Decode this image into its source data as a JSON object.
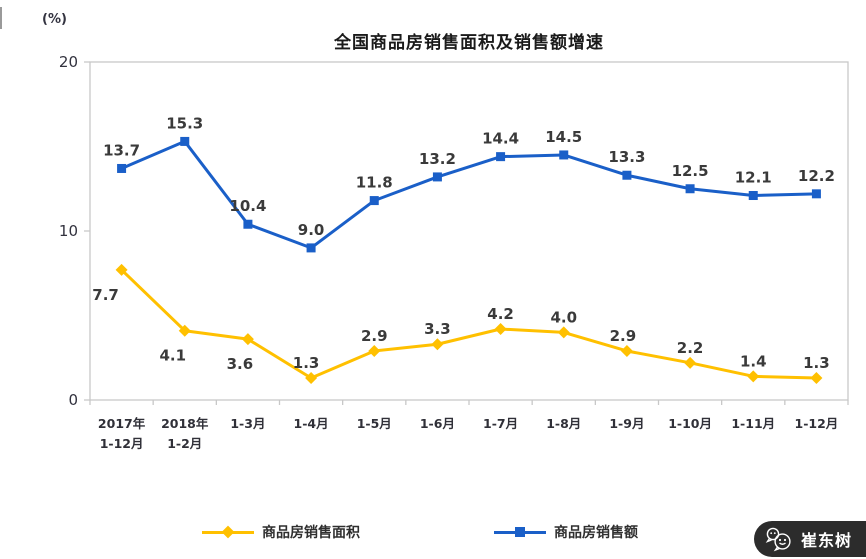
{
  "watermark": {
    "text": "崔东树",
    "icon": "wechat-icon",
    "bg_color": "#2c2c2c",
    "text_color": "#ffffff"
  },
  "chart_data": {
    "type": "line",
    "title": "全国商品房销售面积及销售额增速",
    "ylabel_unit": "(%)",
    "categories": [
      [
        "2017年",
        "1-12月"
      ],
      [
        "2018年",
        "1-2月"
      ],
      [
        "1-3月"
      ],
      [
        "1-4月"
      ],
      [
        "1-5月"
      ],
      [
        "1-6月"
      ],
      [
        "1-7月"
      ],
      [
        "1-8月"
      ],
      [
        "1-9月"
      ],
      [
        "1-10月"
      ],
      [
        "1-11月"
      ],
      [
        "1-12月"
      ]
    ],
    "series": [
      {
        "name": "商品房销售面积",
        "color": "#FFC000",
        "marker": "diamond",
        "values": [
          7.7,
          4.1,
          3.6,
          1.3,
          2.9,
          3.3,
          4.2,
          4.0,
          2.9,
          2.2,
          1.4,
          1.3
        ]
      },
      {
        "name": "商品房销售额",
        "color": "#1A5FC8",
        "marker": "square",
        "values": [
          13.7,
          15.3,
          10.4,
          9.0,
          11.8,
          13.2,
          14.4,
          14.5,
          13.3,
          12.5,
          12.1,
          12.2
        ]
      }
    ],
    "ylim": [
      0,
      20
    ],
    "yticks": [
      0,
      10,
      20
    ],
    "grid": false,
    "legend_position": "bottom",
    "axis_color": "#c8c8c8",
    "data_label_color": "#3a3a3a",
    "data_labels_decimals": 1
  }
}
